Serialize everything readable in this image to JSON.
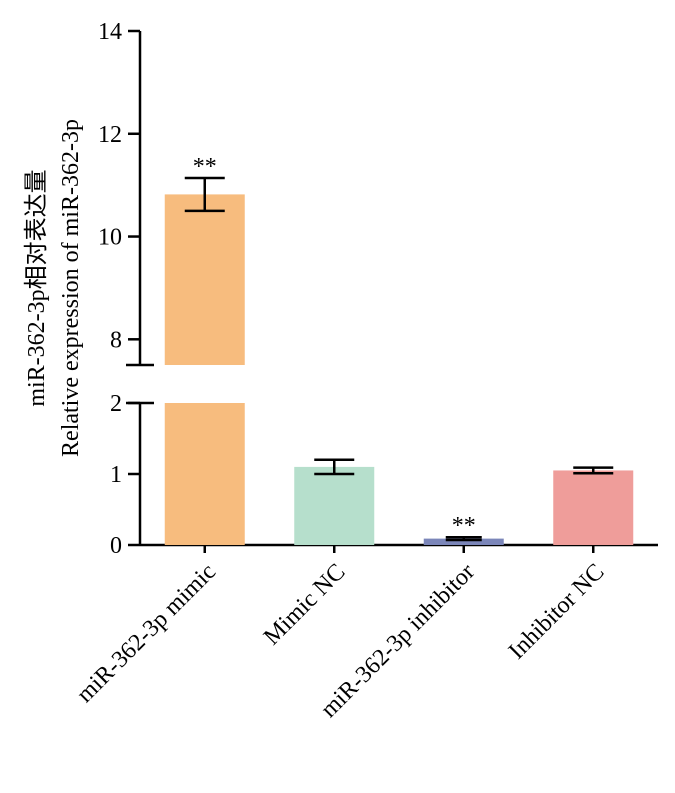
{
  "chart_data": {
    "type": "bar",
    "ylabel_lines": [
      "miR-362-3p相对表达量",
      "Relative expression of miR-362-3p"
    ],
    "xlabel": "",
    "axis_break": {
      "lower": [
        0,
        2
      ],
      "upper": [
        7.5,
        14
      ]
    },
    "y_ticks_lower": [
      "0",
      "1",
      "2"
    ],
    "y_ticks_upper": [
      "8",
      "10",
      "12",
      "14"
    ],
    "y_tick_values_lower": [
      0,
      1,
      2
    ],
    "y_tick_values_upper": [
      8,
      10,
      12,
      14
    ],
    "categories": [
      "miR-362-3p mimic",
      "Mimic NC",
      "miR-362-3p inhibitor",
      "Inhibitor NC"
    ],
    "values": [
      10.82,
      1.1,
      0.09,
      1.05
    ],
    "errors": [
      0.32,
      0.1,
      0.02,
      0.04
    ],
    "significance": [
      "**",
      "",
      "**",
      ""
    ],
    "colors": [
      "#F7BC7E",
      "#B6DFCC",
      "#7B86B9",
      "#EF9D9A"
    ]
  }
}
